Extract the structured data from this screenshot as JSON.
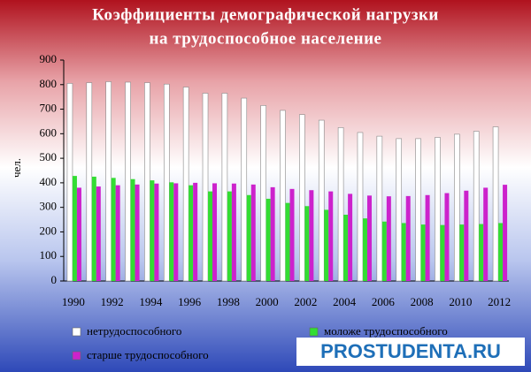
{
  "chart_data": {
    "type": "bar",
    "title": [
      "Коэффициенты демографической нагрузки",
      "на трудоспособное население"
    ],
    "y_label": "чел.",
    "categories": [
      "1990",
      null,
      "1992",
      null,
      "1994",
      null,
      "1996",
      null,
      "1998",
      null,
      "2000",
      null,
      "2002",
      null,
      "2004",
      null,
      "2006",
      null,
      "2008",
      null,
      "2010",
      null,
      "2012"
    ],
    "series": [
      {
        "name": "нетрудоспособного",
        "color": "#ffffff",
        "values": [
          805,
          808,
          812,
          810,
          808,
          802,
          790,
          765,
          765,
          745,
          715,
          695,
          678,
          655,
          625,
          605,
          590,
          580,
          580,
          585,
          598,
          610,
          628
        ]
      },
      {
        "name": "моложе трудоспособного",
        "color": "#33dd33",
        "values": [
          428,
          425,
          420,
          415,
          410,
          402,
          390,
          365,
          365,
          350,
          335,
          318,
          305,
          290,
          270,
          255,
          242,
          236,
          230,
          228,
          230,
          232,
          236
        ]
      },
      {
        "name": "старше трудоспособного",
        "color": "#cc22cc",
        "values": [
          380,
          385,
          390,
          393,
          397,
          398,
          400,
          398,
          397,
          393,
          382,
          375,
          370,
          365,
          355,
          348,
          345,
          346,
          350,
          358,
          368,
          380,
          392
        ]
      }
    ],
    "ylim": [
      0,
      900
    ],
    "yticks": [
      0,
      100,
      200,
      300,
      400,
      500,
      600,
      700,
      800,
      900
    ],
    "grid": false,
    "legend": "bottom",
    "watermark": "PROSTUDENTA.RU"
  }
}
